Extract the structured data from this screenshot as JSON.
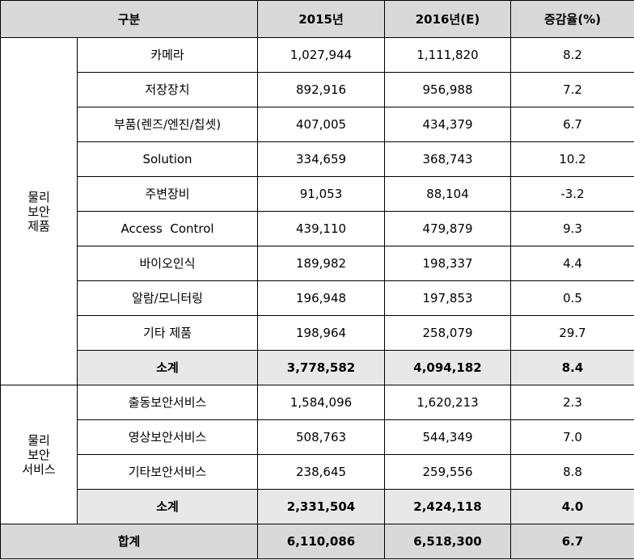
{
  "header": {
    "category": "구분",
    "col_2015": "2015년",
    "col_2016": "2016년(E)",
    "col_rate": "증감율(%)"
  },
  "groups": [
    {
      "label_lines": [
        "물리",
        "보안",
        "제품"
      ],
      "rows": [
        {
          "name": "카메라",
          "v2015": "1,027,944",
          "v2016": "1,111,820",
          "rate": "8.2"
        },
        {
          "name": "저장장치",
          "v2015": "892,916",
          "v2016": "956,988",
          "rate": "7.2"
        },
        {
          "name": "부품(렌즈/엔진/칩셋)",
          "v2015": "407,005",
          "v2016": "434,379",
          "rate": "6.7"
        },
        {
          "name": "Solution",
          "v2015": "334,659",
          "v2016": "368,743",
          "rate": "10.2"
        },
        {
          "name": "주변장비",
          "v2015": "91,053",
          "v2016": "88,104",
          "rate": "-3.2"
        },
        {
          "name": "Access  Control",
          "v2015": "439,110",
          "v2016": "479,879",
          "rate": "9.3"
        },
        {
          "name": "바이오인식",
          "v2015": "189,982",
          "v2016": "198,337",
          "rate": "4.4"
        },
        {
          "name": "알람/모니터링",
          "v2015": "196,948",
          "v2016": "197,853",
          "rate": "0.5"
        },
        {
          "name": "기타 제품",
          "v2015": "198,964",
          "v2016": "258,079",
          "rate": "29.7"
        }
      ],
      "subtotal": {
        "name": "소계",
        "v2015": "3,778,582",
        "v2016": "4,094,182",
        "rate": "8.4"
      }
    },
    {
      "label_lines": [
        "물리",
        "보안",
        "서비스"
      ],
      "rows": [
        {
          "name": "출동보안서비스",
          "v2015": "1,584,096",
          "v2016": "1,620,213",
          "rate": "2.3"
        },
        {
          "name": "영상보안서비스",
          "v2015": "508,763",
          "v2016": "544,349",
          "rate": "7.0"
        },
        {
          "name": "기타보안서비스",
          "v2015": "238,645",
          "v2016": "259,556",
          "rate": "8.8"
        }
      ],
      "subtotal": {
        "name": "소계",
        "v2015": "2,331,504",
        "v2016": "2,424,118",
        "rate": "4.0"
      }
    }
  ],
  "total": {
    "name": "합계",
    "v2015": "6,110,086",
    "v2016": "6,518,300",
    "rate": "6.7"
  }
}
